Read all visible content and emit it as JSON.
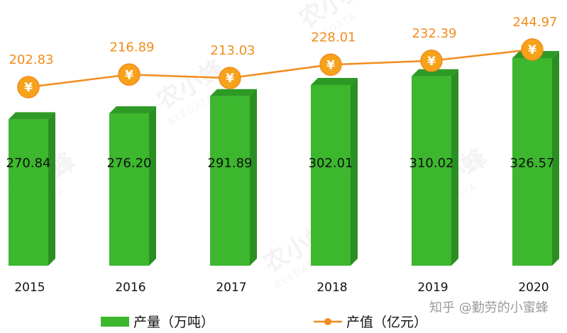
{
  "chart_data": {
    "type": "bar",
    "categories": [
      "2015",
      "2016",
      "2017",
      "2018",
      "2019",
      "2020"
    ],
    "series": [
      {
        "name": "产量（万吨）",
        "type": "bar",
        "values": [
          270.84,
          276.2,
          291.89,
          302.01,
          310.02,
          326.57
        ],
        "color": "#3cb72e"
      },
      {
        "name": "产值（亿元）",
        "type": "line",
        "values": [
          202.83,
          216.89,
          213.03,
          228.01,
          232.39,
          244.97
        ],
        "color": "#f28c1c"
      }
    ],
    "bar_labels": [
      "270.84",
      "276.20",
      "291.89",
      "302.01",
      "310.02",
      "326.57"
    ],
    "line_labels": [
      "202.83",
      "216.89",
      "213.03",
      "228.01",
      "232.39",
      "244.97"
    ],
    "marker_symbol": "¥",
    "legend_position": "bottom"
  },
  "legend": {
    "bar": "产量（万吨）",
    "line": "产值（亿元）"
  },
  "watermark": {
    "brand": "农小蜂",
    "sub": "BEEDATA"
  },
  "credit": "知乎 @勤劳的小蜜蜂"
}
